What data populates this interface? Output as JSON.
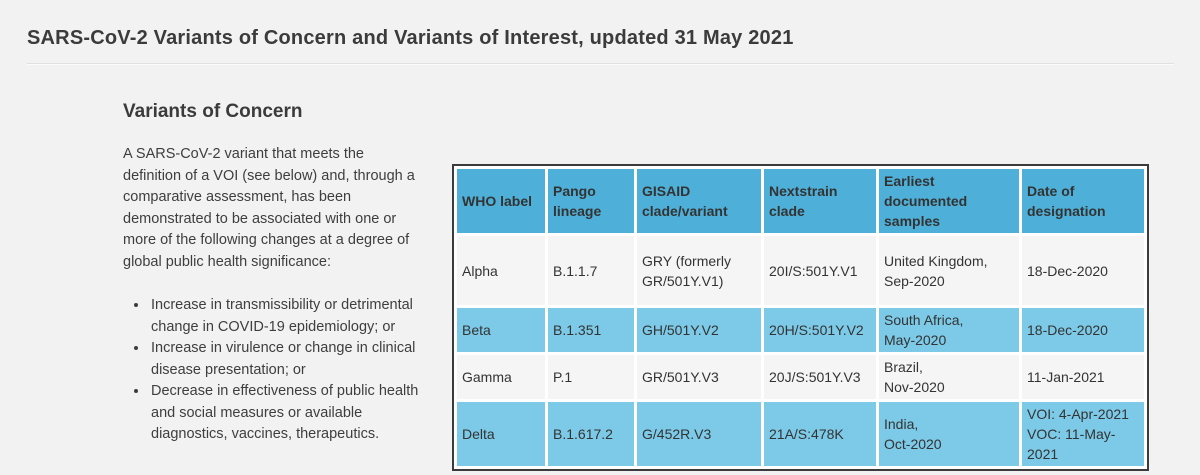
{
  "header": {
    "title": "SARS-CoV-2 Variants of Concern and Variants of Interest, updated 31 May 2021"
  },
  "section": {
    "heading": "Variants of Concern",
    "intro": "A SARS-CoV-2 variant that meets the definition of a VOI (see below) and, through a comparative assessment, has been demonstrated to be associated with one or more of the following changes at a degree of global public health significance:",
    "bullets": [
      "Increase in transmissibility or detrimental change in COVID-19 epidemiology; or",
      "Increase in virulence or change in clinical disease presentation; or",
      "Decrease in effectiveness of public health and social measures or available diagnostics, vaccines, therapeutics."
    ]
  },
  "voc_table": {
    "headers": [
      "WHO label",
      "Pango\nlineage",
      "GISAID\nclade/variant",
      "Nextstrain\nclade",
      "Earliest\ndocumented\nsamples",
      "Date of\ndesignation"
    ],
    "rows": [
      {
        "who_label": "Alpha",
        "pango_lineage": "B.1.1.7",
        "gisaid_clade": "GRY (formerly\nGR/501Y.V1)",
        "nextstrain_clade": "20I/S:501Y.V1",
        "earliest_samples": "United Kingdom,\nSep-2020",
        "date_of_designation": "18-Dec-2020"
      },
      {
        "who_label": "Beta",
        "pango_lineage": "B.1.351",
        "gisaid_clade": "GH/501Y.V2",
        "nextstrain_clade": "20H/S:501Y.V2",
        "earliest_samples": "South Africa,\nMay-2020",
        "date_of_designation": "18-Dec-2020"
      },
      {
        "who_label": "Gamma",
        "pango_lineage": "P.1",
        "gisaid_clade": "GR/501Y.V3",
        "nextstrain_clade": "20J/S:501Y.V3",
        "earliest_samples": "Brazil,\nNov-2020",
        "date_of_designation": "11-Jan-2021"
      },
      {
        "who_label": "Delta",
        "pango_lineage": "B.1.617.2",
        "gisaid_clade": "G/452R.V3",
        "nextstrain_clade": "21A/S:478K",
        "earliest_samples": "India,\nOct-2020",
        "date_of_designation": "VOI: 4-Apr-2021\nVOC: 11-May-2021"
      }
    ]
  },
  "colors": {
    "page_background": "#f2f2f2",
    "header_blue": "#4eb0d8",
    "row_blue": "#7ccae7",
    "row_light": "#f5f5f5",
    "table_border": "#3b3b3b",
    "text": "#3d3d3d"
  }
}
